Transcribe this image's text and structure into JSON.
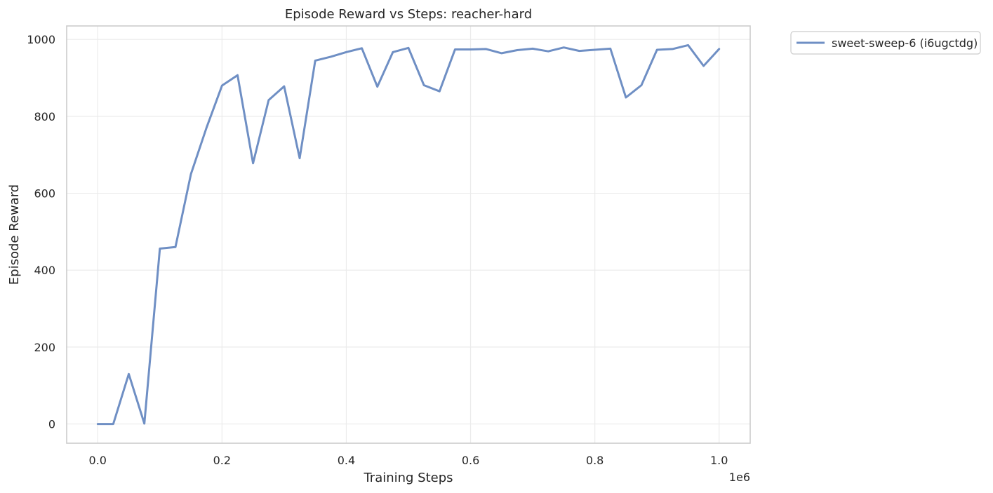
{
  "chart_data": {
    "type": "line",
    "title": "Episode Reward vs Steps: reacher-hard",
    "xlabel": "Training Steps",
    "ylabel": "Episode Reward",
    "x_offset_text": "1e6",
    "xlim": [
      -50000,
      1050000
    ],
    "ylim": [
      -50,
      1035
    ],
    "xticks": [
      0,
      200000,
      400000,
      600000,
      800000,
      1000000
    ],
    "xtick_labels": [
      "0.0",
      "0.2",
      "0.4",
      "0.6",
      "0.8",
      "1.0"
    ],
    "yticks": [
      0,
      200,
      400,
      600,
      800,
      1000
    ],
    "ytick_labels": [
      "0",
      "200",
      "400",
      "600",
      "800",
      "1000"
    ],
    "grid": true,
    "legend_position": "outside-top-right",
    "series": [
      {
        "name": "sweet-sweep-6 (i6ugctdg)",
        "color": "#6f8fc4",
        "x": [
          0,
          25000,
          50000,
          75000,
          100000,
          125000,
          150000,
          175000,
          200000,
          225000,
          250000,
          275000,
          300000,
          325000,
          350000,
          375000,
          400000,
          425000,
          450000,
          475000,
          500000,
          525000,
          550000,
          575000,
          600000,
          625000,
          650000,
          675000,
          700000,
          725000,
          750000,
          775000,
          800000,
          825000,
          850000,
          875000,
          900000,
          925000,
          950000,
          975000,
          1000000
        ],
        "y": [
          0,
          0,
          130,
          1,
          456,
          460,
          650,
          770,
          880,
          907,
          678,
          842,
          878,
          691,
          945,
          955,
          967,
          977,
          877,
          967,
          978,
          881,
          865,
          974,
          974,
          975,
          964,
          972,
          976,
          969,
          979,
          970,
          973,
          976,
          849,
          881,
          973,
          975,
          985,
          931,
          975
        ]
      }
    ]
  }
}
